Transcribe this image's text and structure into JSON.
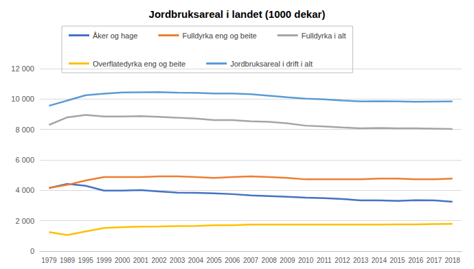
{
  "chart_data": {
    "type": "line",
    "title": "Jordbruksareal i landet (1000 dekar)",
    "categories": [
      "1979",
      "1989",
      "1995",
      "1999",
      "2000",
      "2001",
      "2002",
      "2003",
      "2004",
      "2005",
      "2006",
      "2007",
      "2008",
      "2009",
      "2010",
      "2011",
      "2012",
      "2013",
      "2014",
      "2015",
      "2016",
      "2017",
      "2018"
    ],
    "series": [
      {
        "name": "Åker og hage",
        "color": "#4472c4",
        "values": [
          4150,
          4420,
          4300,
          3980,
          3980,
          4020,
          3930,
          3850,
          3840,
          3800,
          3750,
          3660,
          3620,
          3570,
          3520,
          3480,
          3430,
          3340,
          3340,
          3300,
          3350,
          3340,
          3250
        ]
      },
      {
        "name": "Fulldyrka eng og beite",
        "color": "#ed7d31",
        "values": [
          4150,
          4360,
          4650,
          4870,
          4870,
          4870,
          4920,
          4920,
          4870,
          4820,
          4870,
          4920,
          4870,
          4820,
          4720,
          4720,
          4720,
          4720,
          4770,
          4770,
          4720,
          4720,
          4770
        ]
      },
      {
        "name": "Fulldyrka i alt",
        "color": "#a5a5a5",
        "values": [
          8300,
          8800,
          8950,
          8850,
          8850,
          8880,
          8830,
          8770,
          8720,
          8620,
          8620,
          8540,
          8500,
          8400,
          8250,
          8200,
          8130,
          8080,
          8100,
          8080,
          8070,
          8050,
          8030
        ]
      },
      {
        "name": "Overflatedyrka eng og beite",
        "color": "#ffc000",
        "values": [
          1250,
          1060,
          1300,
          1520,
          1580,
          1610,
          1620,
          1650,
          1660,
          1700,
          1700,
          1750,
          1750,
          1750,
          1750,
          1750,
          1750,
          1750,
          1750,
          1760,
          1760,
          1780,
          1790
        ]
      },
      {
        "name": "Jordbruksareal i drift i alt",
        "color": "#5b9bd5",
        "values": [
          9560,
          9900,
          10250,
          10350,
          10430,
          10440,
          10450,
          10420,
          10410,
          10370,
          10360,
          10320,
          10220,
          10120,
          10030,
          9980,
          9900,
          9850,
          9860,
          9850,
          9820,
          9840,
          9850
        ]
      }
    ],
    "ylim": [
      0,
      12000
    ],
    "yticks": [
      0,
      {
        "value": 2000,
        "label": "2 000"
      },
      {
        "value": 4000,
        "label": "4 000"
      },
      {
        "value": 6000,
        "label": "6 000"
      },
      {
        "value": 8000,
        "label": "8 000"
      },
      {
        "value": 10000,
        "label": "10 000"
      },
      {
        "value": 12000,
        "label": "12 000"
      }
    ],
    "grid": true,
    "legend": "top"
  }
}
